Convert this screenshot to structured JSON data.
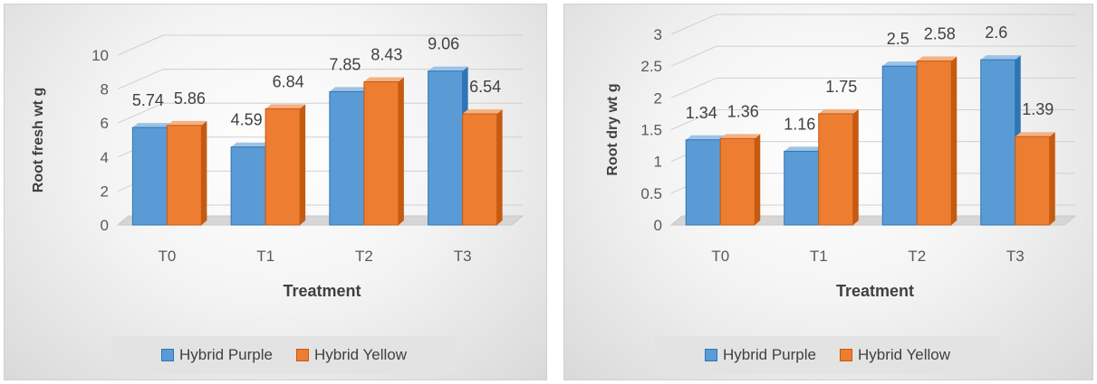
{
  "colors": {
    "purple_front": "#5b9bd5",
    "purple_side": "#2e75b6",
    "purple_top": "#9dc3e6",
    "yellow_front": "#ed7d31",
    "yellow_side": "#c55a11",
    "yellow_top": "#f4b183"
  },
  "chart_data": [
    {
      "type": "bar",
      "categories": [
        "T0",
        "T1",
        "T2",
        "T3"
      ],
      "series": [
        {
          "name": "Hybrid Purple",
          "values": [
            5.74,
            4.59,
            7.85,
            9.06
          ]
        },
        {
          "name": "Hybrid Yellow",
          "values": [
            5.86,
            6.84,
            8.43,
            6.54
          ]
        }
      ],
      "xlabel": "Treatment",
      "ylabel": "Root fresh wt g",
      "ylim": [
        0,
        10
      ],
      "yticks": [
        "0",
        "2",
        "4",
        "6",
        "8",
        "10"
      ],
      "value_labels": [
        [
          "5.74",
          "4.59",
          "7.85",
          "9.06"
        ],
        [
          "5.86",
          "6.84",
          "8.43",
          "6.54"
        ]
      ],
      "legend_position": "bottom",
      "grid": true
    },
    {
      "type": "bar",
      "categories": [
        "T0",
        "T1",
        "T2",
        "T3"
      ],
      "series": [
        {
          "name": "Hybrid Purple",
          "values": [
            1.34,
            1.16,
            2.5,
            2.6
          ]
        },
        {
          "name": "Hybrid Yellow",
          "values": [
            1.36,
            1.75,
            2.58,
            1.39
          ]
        }
      ],
      "xlabel": "Treatment",
      "ylabel": "Root dry wt g",
      "ylim": [
        0,
        3
      ],
      "yticks": [
        "0",
        "0.5",
        "1",
        "1.5",
        "2",
        "2.5",
        "3"
      ],
      "value_labels": [
        [
          "1.34",
          "1.16",
          "2.5",
          "2.6"
        ],
        [
          "1.36",
          "1.75",
          "2.58",
          "1.39"
        ]
      ],
      "legend_position": "bottom",
      "grid": true
    }
  ]
}
